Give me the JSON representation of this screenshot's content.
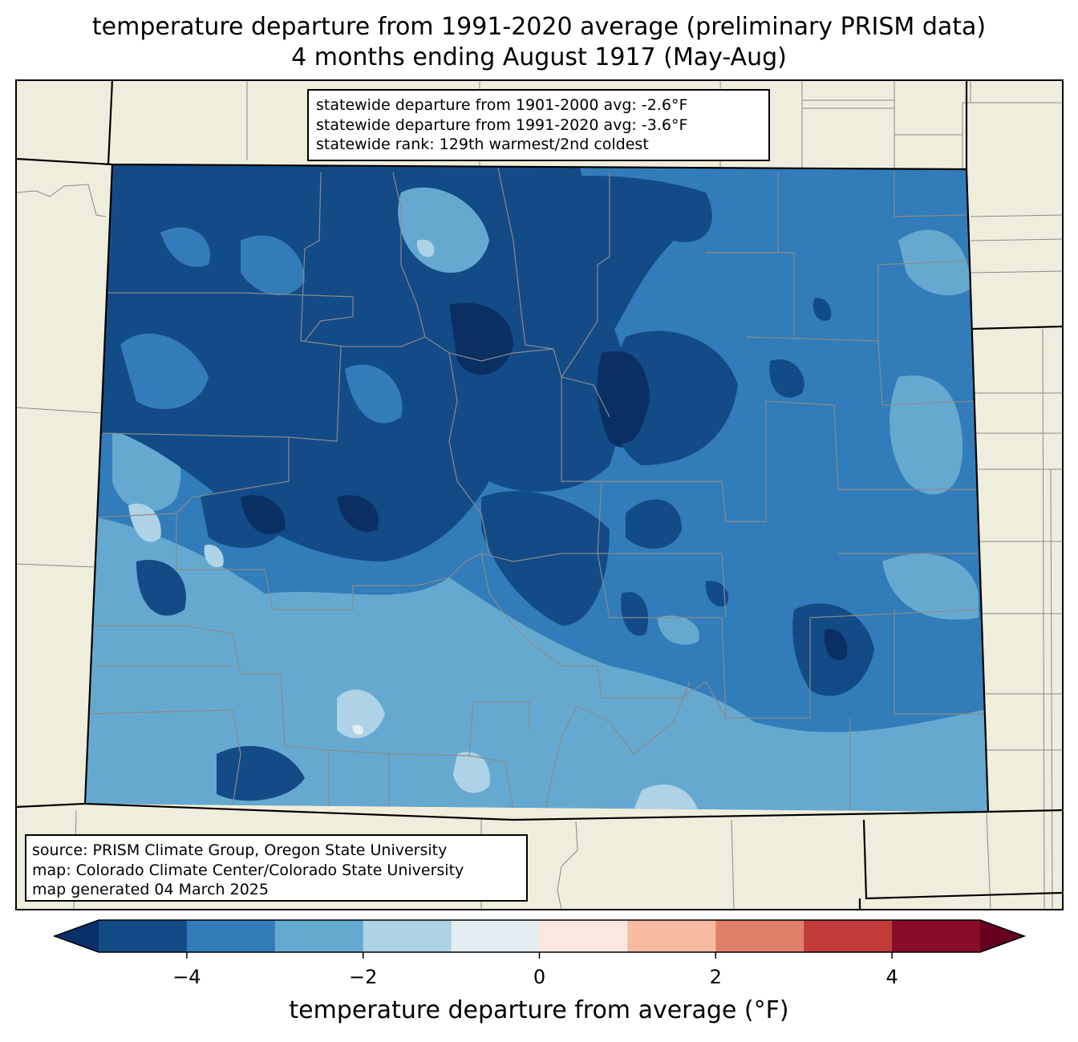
{
  "title": {
    "line1": "temperature departure from 1991-2020 average (preliminary PRISM data)",
    "line2": "4 months ending August 1917 (May-Aug)"
  },
  "stats": [
    "statewide departure from 1901-2000 avg: -2.6°F",
    "statewide departure from 1991-2020 avg: -3.6°F",
    "statewide rank: 129th warmest/2nd coldest"
  ],
  "source": [
    "source: PRISM Climate Group, Oregon State University",
    "map: Colorado Climate Center/Colorado State University",
    "map generated 04 March 2025"
  ],
  "colorbar": {
    "label": "temperature departure from average (°F)",
    "ticks": [
      {
        "value": -4,
        "text": "−4"
      },
      {
        "value": -2,
        "text": "−2"
      },
      {
        "value": 0,
        "text": "0"
      },
      {
        "value": 2,
        "text": "2"
      },
      {
        "value": 4,
        "text": "4"
      }
    ],
    "bins": [
      {
        "from": -5,
        "to": -4,
        "color": "#134b87"
      },
      {
        "from": -4,
        "to": -3,
        "color": "#327cb9"
      },
      {
        "from": -3,
        "to": -2,
        "color": "#66a9d0"
      },
      {
        "from": -2,
        "to": -1,
        "color": "#aed2e6"
      },
      {
        "from": -1,
        "to": 0,
        "color": "#e3edf2"
      },
      {
        "from": 0,
        "to": 1,
        "color": "#fae8de"
      },
      {
        "from": 1,
        "to": 2,
        "color": "#f8bba1"
      },
      {
        "from": 2,
        "to": 3,
        "color": "#e07f69"
      },
      {
        "from": 3,
        "to": 4,
        "color": "#c13b3b"
      },
      {
        "from": 4,
        "to": 5,
        "color": "#880c26"
      }
    ],
    "under_color": "#08306b",
    "over_color": "#67001f"
  },
  "colors": {
    "background_land": "#efeedc",
    "darkest": "#0a2f62"
  }
}
